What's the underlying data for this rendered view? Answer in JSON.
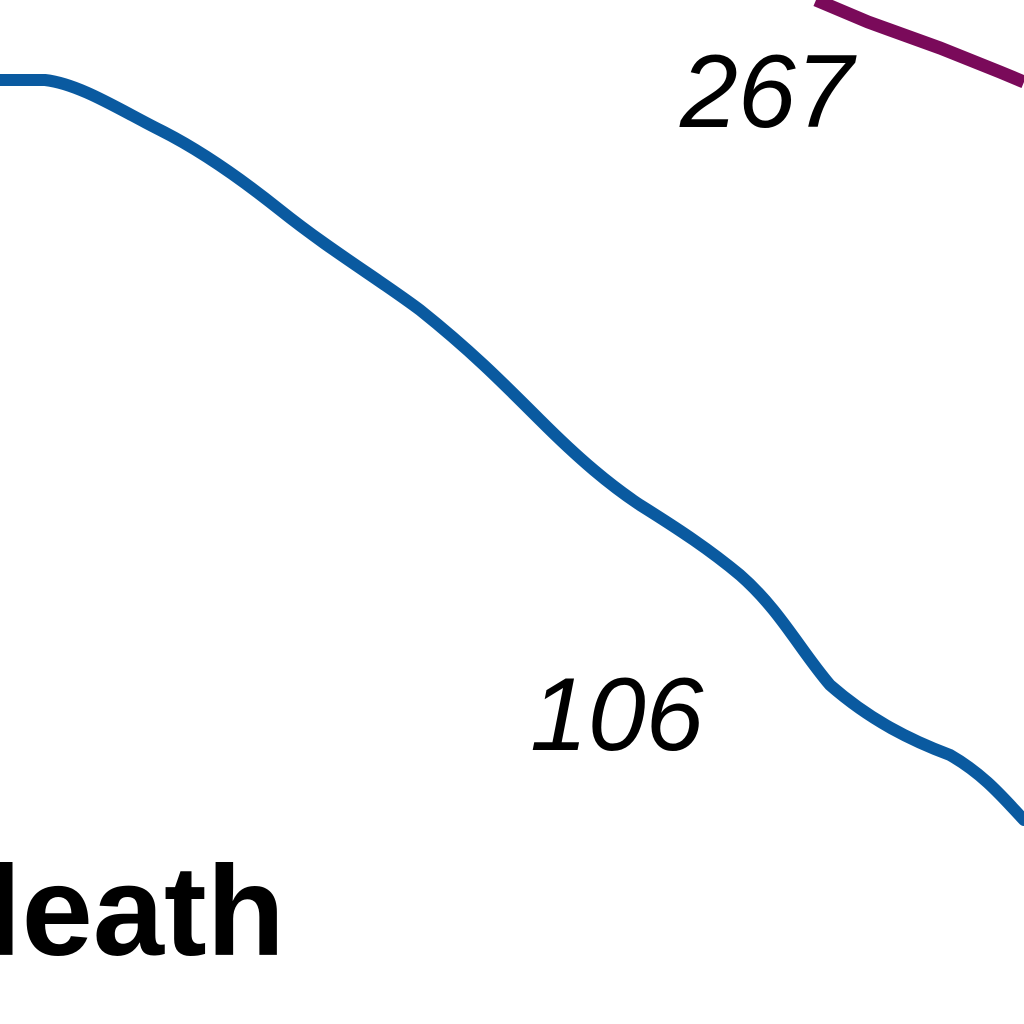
{
  "map": {
    "background": "#ffffff",
    "routes": [
      {
        "name": "route-line-blue",
        "color": "#0a5aa0"
      },
      {
        "name": "route-line-purple",
        "color": "#7a0a5a"
      }
    ],
    "labels": {
      "route_267": "267",
      "route_106": "106",
      "place_fragment": "leath"
    },
    "label_color": "#000000"
  }
}
